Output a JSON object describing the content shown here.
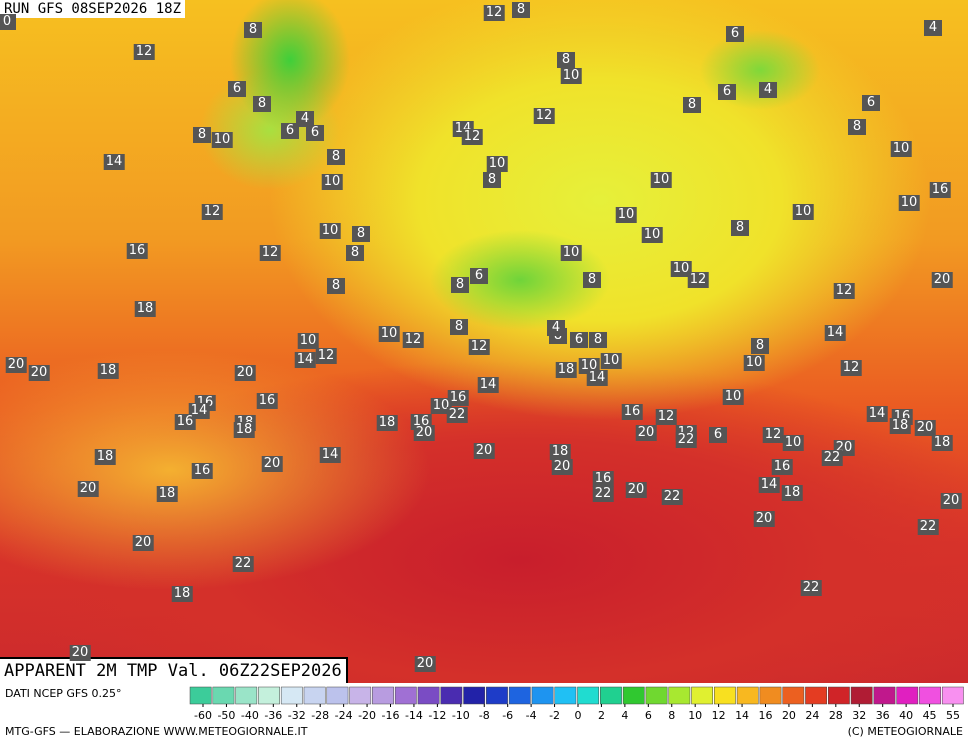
{
  "header": {
    "run": "RUN GFS 08SEP2026 18Z",
    "title": "APPARENT 2M TMP Val. 06Z22SEP2026"
  },
  "footer": {
    "source": "DATI NCEP GFS 0.25°",
    "credit": "MTG-GFS — ELABORAZIONE WWW.METEOGIORNALE.IT",
    "copyright": "(C) METEOGIORNALE"
  },
  "labels": [
    0,
    12,
    8,
    8,
    6,
    4,
    12,
    8,
    10,
    6,
    8,
    4,
    6,
    6,
    8,
    10,
    4,
    6,
    8,
    6,
    8,
    12,
    14,
    12,
    14,
    8,
    10,
    8,
    10,
    10,
    16,
    10,
    12,
    10,
    10,
    10,
    10,
    8,
    10,
    8,
    16,
    12,
    8,
    10,
    6,
    8,
    10,
    12,
    20,
    8,
    8,
    12,
    18,
    8,
    10,
    12,
    10,
    14,
    8,
    6,
    8,
    12,
    4,
    8,
    14,
    12,
    10,
    20,
    20,
    18,
    20,
    18,
    10,
    10,
    14,
    12,
    14,
    16,
    14,
    16,
    16,
    10,
    22,
    10,
    16,
    18,
    18,
    18,
    16,
    20,
    16,
    12,
    14,
    16,
    18,
    20,
    20,
    12,
    22,
    6,
    12,
    10,
    18,
    20,
    22,
    20,
    14,
    18,
    18,
    20,
    20,
    16,
    16,
    20,
    18,
    16,
    22,
    20,
    14,
    18,
    22,
    20,
    20,
    22,
    20,
    22,
    18,
    22,
    20,
    20
  ],
  "colorbar": {
    "ticks": [
      -60,
      -50,
      -40,
      -36,
      -32,
      -28,
      -24,
      -20,
      -16,
      -14,
      -12,
      -10,
      -8,
      -6,
      -4,
      -2,
      0,
      2,
      4,
      6,
      8,
      10,
      12,
      14,
      16,
      20,
      24,
      28,
      32,
      36,
      40,
      45,
      55
    ],
    "colors": [
      "#3ccc9a",
      "#6ad8b0",
      "#9ae4c8",
      "#c4f0dc",
      "#d6e8f4",
      "#c8d4f0",
      "#bcc2ec",
      "#c8b4e8",
      "#b89ce0",
      "#a070d4",
      "#7a4cc4",
      "#4a2cb0",
      "#2222a8",
      "#1e3cc8",
      "#1e64e0",
      "#1e94f0",
      "#20c0f4",
      "#20dcd0",
      "#20d090",
      "#30c830",
      "#70d830",
      "#a8e830",
      "#e0f030",
      "#f8e020",
      "#f8b820",
      "#f08c20",
      "#ec6020",
      "#e43c22",
      "#d02428",
      "#b01c34",
      "#c0188c",
      "#e020c0",
      "#f050e0",
      "#f890f0"
    ]
  }
}
